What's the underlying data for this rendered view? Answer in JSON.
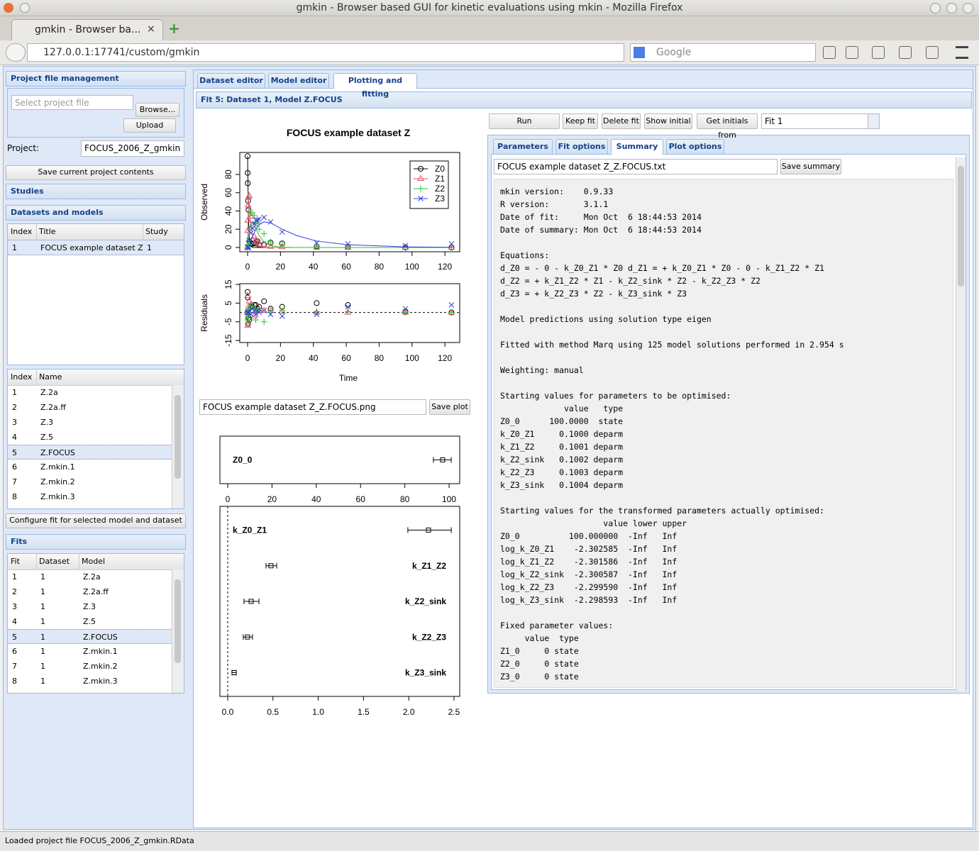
{
  "window": {
    "title": "gmkin - Browser based GUI for kinetic evaluations using mkin - Mozilla Firefox",
    "tab": "gmkin - Browser ba...",
    "url": "127.0.0.1:17741/custom/gmkin",
    "search": "Google"
  },
  "sidebar": {
    "project": {
      "title": "Project file management",
      "select_placeholder": "Select project file",
      "browse": "Browse...",
      "upload": "Upload",
      "project_label": "Project:",
      "project_value": "FOCUS_2006_Z_gmkin",
      "save": "Save current project contents"
    },
    "studies": "Studies",
    "datasets_models": {
      "title": "Datasets and models",
      "dataset_headers": [
        "Index",
        "Title",
        "Study"
      ],
      "dataset_rows": [
        [
          "1",
          "FOCUS example dataset Z",
          "1"
        ]
      ],
      "model_headers": [
        "Index",
        "Name"
      ],
      "model_rows": [
        [
          "1",
          "Z.2a"
        ],
        [
          "2",
          "Z.2a.ff"
        ],
        [
          "3",
          "Z.3"
        ],
        [
          "4",
          "Z.5"
        ],
        [
          "5",
          "Z.FOCUS"
        ],
        [
          "6",
          "Z.mkin.1"
        ],
        [
          "7",
          "Z.mkin.2"
        ],
        [
          "8",
          "Z.mkin.3"
        ]
      ],
      "configure": "Configure fit for selected model and dataset"
    },
    "fits": {
      "title": "Fits",
      "headers": [
        "Fit",
        "Dataset",
        "Model"
      ],
      "rows": [
        [
          "1",
          "1",
          "Z.2a"
        ],
        [
          "2",
          "1",
          "Z.2a.ff"
        ],
        [
          "3",
          "1",
          "Z.3"
        ],
        [
          "4",
          "1",
          "Z.5"
        ],
        [
          "5",
          "1",
          "Z.FOCUS"
        ],
        [
          "6",
          "1",
          "Z.mkin.1"
        ],
        [
          "7",
          "1",
          "Z.mkin.2"
        ],
        [
          "8",
          "1",
          "Z.mkin.3"
        ]
      ]
    }
  },
  "main": {
    "tabs": [
      "Dataset editor",
      "Model editor",
      "Plotting and fitting"
    ],
    "fit_header": "Fit 5: Dataset 1, Model Z.FOCUS",
    "plot_file": "FOCUS example dataset Z_Z.FOCUS.png",
    "save_plot": "Save plot",
    "buttons": [
      "Run",
      "Keep fit",
      "Delete fit",
      "Show initial",
      "Get initials from"
    ],
    "fit_select": "Fit 1",
    "subtabs": [
      "Parameters",
      "Fit options",
      "Summary",
      "Plot options"
    ],
    "summary_file": "FOCUS example dataset Z_Z.FOCUS.txt",
    "save_summary": "Save summary",
    "summary": [
      [
        "mkin version:    0.9.33",
        "R version:       3.1.1",
        "Date of fit:     Mon Oct  6 18:44:53 2014",
        "Date of summary: Mon Oct  6 18:44:53 2014"
      ],
      [
        "Equations:",
        "d_Z0 = - 0 - k_Z0_Z1 * Z0 d_Z1 = + k_Z0_Z1 * Z0 - 0 - k_Z1_Z2 * Z1",
        "d_Z2 = + k_Z1_Z2 * Z1 - k_Z2_sink * Z2 - k_Z2_Z3 * Z2",
        "d_Z3 = + k_Z2_Z3 * Z2 - k_Z3_sink * Z3"
      ],
      [
        "Model predictions using solution type eigen"
      ],
      [
        "Fitted with method Marq using 125 model solutions performed in 2.954 s"
      ],
      [
        "Weighting: manual"
      ],
      [
        "Starting values for parameters to be optimised:",
        "             value   type",
        "Z0_0      100.0000  state",
        "k_Z0_Z1     0.1000 deparm",
        "k_Z1_Z2     0.1001 deparm",
        "k_Z2_sink   0.1002 deparm",
        "k_Z2_Z3     0.1003 deparm",
        "k_Z3_sink   0.1004 deparm"
      ],
      [
        "Starting values for the transformed parameters actually optimised:",
        "                     value lower upper",
        "Z0_0          100.000000  -Inf   Inf",
        "log_k_Z0_Z1    -2.302585  -Inf   Inf",
        "log_k_Z1_Z2    -2.301586  -Inf   Inf",
        "log_k_Z2_sink  -2.300587  -Inf   Inf",
        "log_k_Z2_Z3    -2.299590  -Inf   Inf",
        "log_k_Z3_sink  -2.298593  -Inf   Inf"
      ],
      [
        "Fixed parameter values:",
        "     value  type",
        "Z1_0     0 state",
        "Z2_0     0 state",
        "Z3_0     0 state"
      ]
    ],
    "charts": [
      {
        "type": "scatter",
        "title": "FOCUS example dataset Z",
        "y_label": "Observed",
        "x": [
          0,
          0.04,
          0.125,
          0.29,
          0.54,
          1,
          2,
          3,
          4,
          5,
          6,
          7,
          10,
          14,
          21,
          42,
          61,
          96,
          124
        ],
        "x_fit": [
          0,
          0.5,
          1,
          2,
          3,
          5,
          7,
          10,
          14,
          21,
          30,
          42,
          61,
          96,
          124
        ],
        "series": [
          {
            "name": "Z0",
            "color": "#000000",
            "marker": "circle",
            "values": [
              100,
              81.7,
              70.4,
              51.1,
              41.2,
              6.6,
              4.6,
              3.9,
              4.6,
              4.3,
              6.8,
              2.9,
              3.5,
              5.3,
              4.4,
              1.2,
              0.7,
              0,
              0
            ],
            "fit": [
              100,
              33,
              11,
              1.2,
              0.1,
              0,
              0,
              0,
              0,
              0,
              0,
              0,
              0,
              0,
              0
            ]
          },
          {
            "name": "Z1",
            "color": "#df536b",
            "marker": "triangle",
            "values": [
              0,
              18.3,
              29.6,
              46.3,
              55.1,
              56.7,
              34,
              24,
              12,
              8,
              6,
              4,
              3,
              1,
              0.5,
              0,
              0,
              0,
              0
            ],
            "fit": [
              0,
              52,
              45,
              25,
              13,
              3,
              1,
              0.2,
              0,
              0,
              0,
              0,
              0,
              0,
              0
            ]
          },
          {
            "name": "Z2",
            "color": "#2fbf2f",
            "marker": "plus",
            "values": [
              0,
              0,
              0,
              2.6,
              3.4,
              20,
              38,
              38,
              35,
              27,
              26,
              20,
              15,
              6,
              3,
              1,
              0.5,
              0,
              0
            ],
            "fit": [
              0,
              8,
              18,
              27,
              28,
              20,
              13,
              6,
              2,
              0.3,
              0,
              0,
              0,
              0,
              0
            ]
          },
          {
            "name": "Z3",
            "color": "#2f3fdf",
            "marker": "cross",
            "values": [
              0,
              0,
              0,
              0,
              0,
              8,
              16,
              21,
              26,
              30,
              30,
              31,
              33,
              28,
              17,
              5,
              4,
              2,
              4
            ],
            "fit": [
              0,
              0.5,
              2,
              7,
              12,
              20,
              25,
              28,
              27,
              20,
              13,
              7,
              3,
              0.6,
              0.2
            ]
          }
        ],
        "xlim": [
          -4.75,
          129
        ],
        "ylim": [
          -4.7,
          104.1
        ],
        "xticks": [
          0,
          20,
          40,
          60,
          80,
          100,
          120
        ],
        "yticks": [
          0,
          20,
          40,
          60,
          80
        ],
        "legend": "top-right"
      },
      {
        "type": "scatter",
        "x_label": "Time",
        "y_label": "Residuals",
        "x": [
          0,
          0.04,
          0.125,
          0.29,
          0.54,
          1,
          2,
          3,
          4,
          5,
          6,
          7,
          10,
          14,
          21,
          42,
          61,
          96,
          124
        ],
        "series": [
          {
            "color": "#000000",
            "marker": "circle",
            "values": [
              0,
              11,
              8,
              -6,
              -3,
              -4,
              3,
              3,
              4,
              4,
              2,
              3,
              6,
              2,
              3,
              5,
              4,
              0.5,
              0
            ]
          },
          {
            "color": "#df536b",
            "marker": "triangle",
            "values": [
              0,
              9,
              -7,
              -5,
              3,
              6,
              4,
              1,
              -2,
              1,
              3,
              1,
              1,
              1,
              0.5,
              0,
              0,
              0,
              0
            ]
          },
          {
            "color": "#2fbf2f",
            "marker": "plus",
            "values": [
              0,
              -4,
              -3,
              -2,
              -4,
              2,
              3,
              3,
              2,
              -4,
              1,
              2,
              -5,
              0,
              1,
              0.5,
              0.5,
              0,
              0
            ]
          },
          {
            "color": "#2f3fdf",
            "marker": "cross",
            "values": [
              0,
              0,
              0,
              0,
              0,
              1,
              -1,
              2,
              1,
              -1,
              1,
              0,
              1,
              -1,
              -2,
              -1,
              3,
              2,
              4
            ]
          }
        ],
        "xlim": [
          -4.75,
          129
        ],
        "ylim": [
          -16.1,
          15.4
        ],
        "xticks": [
          0,
          20,
          40,
          60,
          80,
          100,
          120
        ],
        "yticks": [
          -15,
          -5,
          5,
          15
        ],
        "reference_line": 0
      },
      {
        "type": "errorbar",
        "parameters": [
          {
            "name": "Z0_0",
            "estimate": 97.1,
            "lower": 92.9,
            "upper": 100.96
          }
        ],
        "xlim": [
          -3.53,
          104.8
        ],
        "xticks": [
          0,
          20,
          40,
          60,
          80,
          100
        ]
      },
      {
        "type": "errorbar",
        "parameters": [
          {
            "name": "k_Z0_Z1",
            "estimate": 2.218,
            "lower": 1.99,
            "upper": 2.47
          },
          {
            "name": "k_Z1_Z2",
            "estimate": 0.478,
            "lower": 0.423,
            "upper": 0.541
          },
          {
            "name": "k_Z2_sink",
            "estimate": 0.259,
            "lower": 0.18,
            "upper": 0.345
          },
          {
            "name": "k_Z2_Z3",
            "estimate": 0.219,
            "lower": 0.172,
            "upper": 0.274
          },
          {
            "name": "k_Z3_sink",
            "estimate": 0.071,
            "lower": 0.047,
            "upper": 0.094
          }
        ],
        "xlim": [
          -0.086,
          2.563
        ],
        "xticks": [
          {
            "value": 0,
            "label": "0.0"
          },
          0.5,
          {
            "value": 1,
            "label": "1.0"
          },
          1.5,
          {
            "value": 2,
            "label": "2.0"
          },
          2.5
        ],
        "reference_line": 0
      }
    ]
  },
  "status": "Loaded project file FOCUS_2006_Z_gmkin.RData"
}
